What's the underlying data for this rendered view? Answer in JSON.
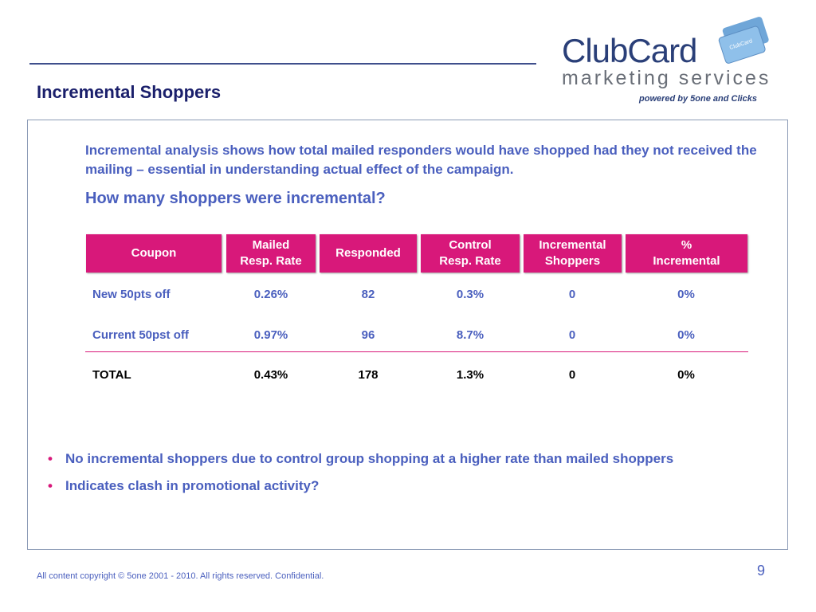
{
  "slide": {
    "title": "Incremental Shoppers",
    "intro": "Incremental analysis shows how total mailed responders would have shopped had they not received the mailing – essential in understanding actual effect of the campaign.",
    "question": "How many shoppers were incremental?",
    "footer": "All content copyright © 5one 2001 - 2010. All rights reserved. Confidential.",
    "page_number": "9"
  },
  "logo": {
    "word": "ClubCard",
    "sub": "marketing services",
    "powered": "powered by 5one and Clicks",
    "card_text": "ClubCard"
  },
  "table": {
    "headers": [
      "Coupon",
      "Mailed\nResp. Rate",
      "Responded",
      "Control\nResp. Rate",
      "Incremental\nShoppers",
      "%\nIncremental"
    ],
    "rows": [
      [
        "New 50pts off",
        "0.26%",
        "82",
        "0.3%",
        "0",
        "0%"
      ],
      [
        "Current 50pst off",
        "0.97%",
        "96",
        "8.7%",
        "0",
        "0%"
      ],
      [
        "TOTAL",
        "0.43%",
        "178",
        "1.3%",
        "0",
        "0%"
      ]
    ]
  },
  "bullets": [
    "No incremental shoppers due to control group shopping at a higher rate than mailed shoppers",
    "Indicates clash in promotional activity?"
  ],
  "colors": {
    "accent": "#d8187a",
    "text_blue": "#4a5fbe",
    "title_navy": "#1a1f6b"
  }
}
